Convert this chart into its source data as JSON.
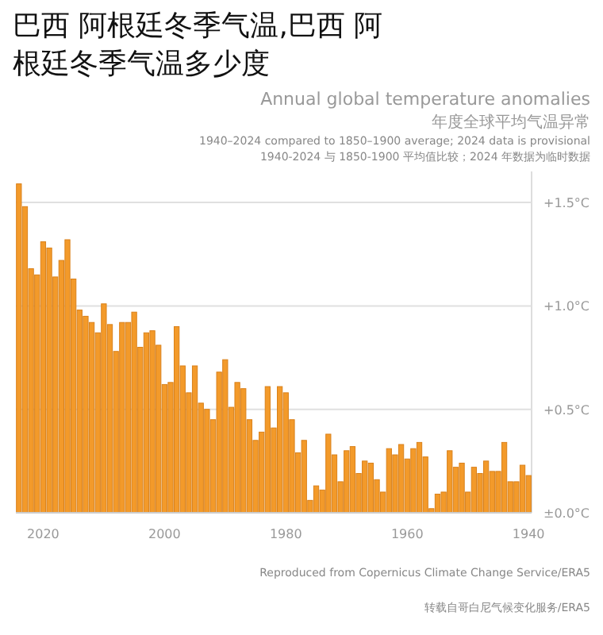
{
  "chart_data": {
    "type": "bar",
    "title": "巴西 阿根廷冬季气温,巴西 阿根廷冬季气温多少度",
    "subtitle": "Annual global temperature anomalies",
    "annotations": [
      "年度全球平均气温异常",
      "1940–2024 compared to 1850–1900 average; 2024 data is provisional",
      "1940-2024 与 1850-1900 平均值比较；2024 年数据为临时数据",
      "Reproduced from Copernicus Climate Change Service/ERA5",
      "转载自哥白尼气候变化服务/ERA5"
    ],
    "x": [
      2024,
      2023,
      2022,
      2021,
      2020,
      2019,
      2018,
      2017,
      2016,
      2015,
      2014,
      2013,
      2012,
      2011,
      2010,
      2009,
      2008,
      2007,
      2006,
      2005,
      2004,
      2003,
      2002,
      2001,
      2000,
      1999,
      1998,
      1997,
      1996,
      1995,
      1994,
      1993,
      1992,
      1991,
      1990,
      1989,
      1988,
      1987,
      1986,
      1985,
      1984,
      1983,
      1982,
      1981,
      1980,
      1979,
      1978,
      1977,
      1976,
      1975,
      1974,
      1973,
      1972,
      1971,
      1970,
      1969,
      1968,
      1967,
      1966,
      1965,
      1964,
      1963,
      1962,
      1961,
      1960,
      1959,
      1958,
      1957,
      1956,
      1955,
      1954,
      1953,
      1952,
      1951,
      1950,
      1949,
      1948,
      1947,
      1946,
      1945,
      1944,
      1943,
      1942,
      1941,
      1940
    ],
    "values": [
      1.59,
      1.48,
      1.18,
      1.15,
      1.31,
      1.28,
      1.14,
      1.22,
      1.32,
      1.13,
      0.98,
      0.95,
      0.92,
      0.87,
      1.01,
      0.91,
      0.78,
      0.92,
      0.92,
      0.97,
      0.8,
      0.87,
      0.88,
      0.81,
      0.62,
      0.63,
      0.9,
      0.71,
      0.58,
      0.71,
      0.53,
      0.5,
      0.45,
      0.68,
      0.74,
      0.51,
      0.63,
      0.6,
      0.45,
      0.35,
      0.39,
      0.61,
      0.41,
      0.61,
      0.58,
      0.45,
      0.29,
      0.35,
      0.06,
      0.13,
      0.11,
      0.38,
      0.28,
      0.15,
      0.3,
      0.32,
      0.19,
      0.25,
      0.24,
      0.16,
      0.1,
      0.31,
      0.28,
      0.33,
      0.26,
      0.31,
      0.34,
      0.27,
      0.02,
      0.09,
      0.1,
      0.3,
      0.22,
      0.24,
      0.1,
      0.22,
      0.19,
      0.25,
      0.2,
      0.2,
      0.34,
      0.15,
      0.15,
      0.23,
      0.18
    ],
    "color": "#f39a2a",
    "xlim": [
      2024.5,
      1939.5
    ],
    "xticks": [
      2020,
      2000,
      1980,
      1960,
      1940
    ],
    "ylim": [
      0,
      1.65
    ],
    "yticks": [
      {
        "value": 0,
        "label": "±0.0°C"
      },
      {
        "value": 0.5,
        "label": "+0.5°C"
      },
      {
        "value": 1,
        "label": "+1.0°C"
      },
      {
        "value": 1.5,
        "label": "+1.5°C"
      }
    ],
    "grid": "y"
  }
}
